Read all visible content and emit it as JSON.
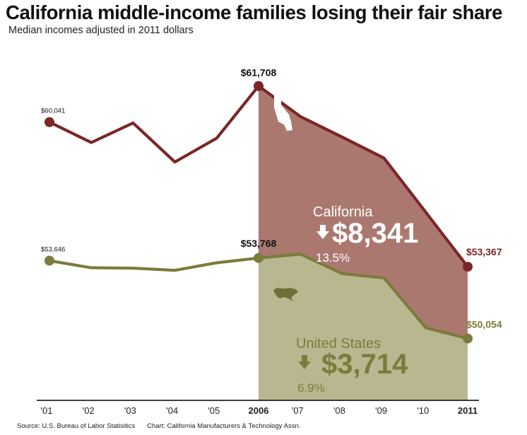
{
  "title": "California middle-income families losing their fair share",
  "subtitle": "Median incomes adjusted in 2011 dollars",
  "source": "Source: U.S. Bureau of Labor Statisitics",
  "credit": "Chart: California Manufacturers & Technology Assn.",
  "chart_data": {
    "type": "line",
    "x": [
      2001,
      2002,
      2003,
      2004,
      2005,
      2006,
      2007,
      2008,
      2009,
      2010,
      2011
    ],
    "tick_labels": [
      "'01",
      "'02",
      "'03",
      "'04",
      "'05",
      "2006",
      "'07",
      "'08",
      "'09",
      "'10",
      "2011"
    ],
    "bold_ticks": [
      "2006",
      "2011"
    ],
    "ylim": [
      47200,
      63000
    ],
    "grid": false,
    "shaded_from": 2006,
    "series": [
      {
        "name": "California",
        "color": "#7a2628",
        "fill": "#ab7870",
        "values": [
          60041,
          59100,
          60000,
          58200,
          59300,
          61708,
          60300,
          59350,
          58380,
          55880,
          53367
        ],
        "value_labels": [
          {
            "x": 2001,
            "text": "$60,041",
            "style": "small"
          },
          {
            "x": 2006,
            "text": "$61,708",
            "style": "bold"
          },
          {
            "x": 2011,
            "text": "$53,367",
            "style": "bold"
          }
        ],
        "annotation": {
          "name": "California",
          "amount": "$8,341",
          "percent": "13.5%",
          "icon": "california-state-icon"
        }
      },
      {
        "name": "United States",
        "color": "#7b7c3c",
        "fill": "#b8b78f",
        "values": [
          53646,
          53320,
          53300,
          53200,
          53550,
          53768,
          53950,
          53050,
          52850,
          50550,
          50054
        ],
        "value_labels": [
          {
            "x": 2001,
            "text": "$53,646",
            "style": "small"
          },
          {
            "x": 2006,
            "text": "$53,768",
            "style": "bold"
          },
          {
            "x": 2011,
            "text": "$50,054",
            "style": "bold"
          }
        ],
        "annotation": {
          "name": "United States",
          "amount": "$3,714",
          "percent": "6.9%",
          "icon": "us-map-icon"
        }
      }
    ]
  }
}
